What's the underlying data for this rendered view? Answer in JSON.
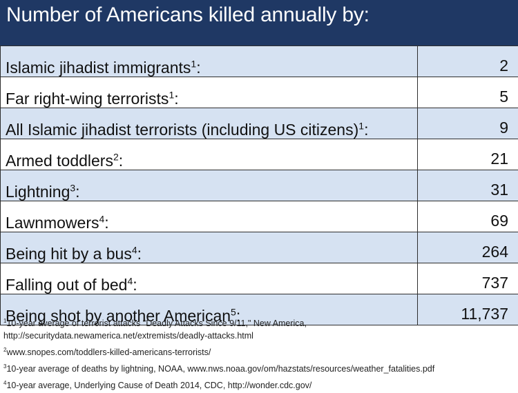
{
  "title": "Number of Americans killed annually by:",
  "rows": [
    {
      "label": "Islamic jihadist immigrants",
      "ref": "1",
      "suffix": ":",
      "value": "2"
    },
    {
      "label": "Far right-wing terrorists",
      "ref": "1",
      "suffix": ":",
      "value": "5"
    },
    {
      "label": "All Islamic jihadist terrorists (including US citizens)",
      "ref": "1",
      "suffix": ":",
      "value": "9"
    },
    {
      "label": "Armed toddlers",
      "ref": "2",
      "suffix": ":",
      "value": "21"
    },
    {
      "label": "Lightning",
      "ref": "3",
      "suffix": ":",
      "value": "31"
    },
    {
      "label": "Lawnmowers",
      "ref": "4",
      "suffix": ":",
      "value": "69"
    },
    {
      "label": "Being hit by a bus",
      "ref": "4",
      "suffix": ":",
      "value": "264"
    },
    {
      "label": "Falling out of bed",
      "ref": "4",
      "suffix": ":",
      "value": "737"
    },
    {
      "label": "Being shot by another American",
      "ref": "5",
      "suffix": ":",
      "value": "11,737"
    }
  ],
  "footnotes": [
    {
      "ref": "1",
      "line1": "10-year average of terrorist attacks \"Deadly Attacks Since 9/11,\" New America,",
      "line2": "http://securitydata.newamerica.net/extremists/deadly-attacks.html"
    },
    {
      "ref": "2",
      "line1": "www.snopes.com/toddlers-killed-americans-terrorists/"
    },
    {
      "ref": "3",
      "line1": "10-year average of deaths by lightning, NOAA, www.nws.noaa.gov/om/hazstats/resources/weather_fatalities.pdf"
    },
    {
      "ref": "4",
      "line1": "10-year average, Underlying Cause of Death 2014, CDC, http://wonder.cdc.gov/"
    }
  ]
}
